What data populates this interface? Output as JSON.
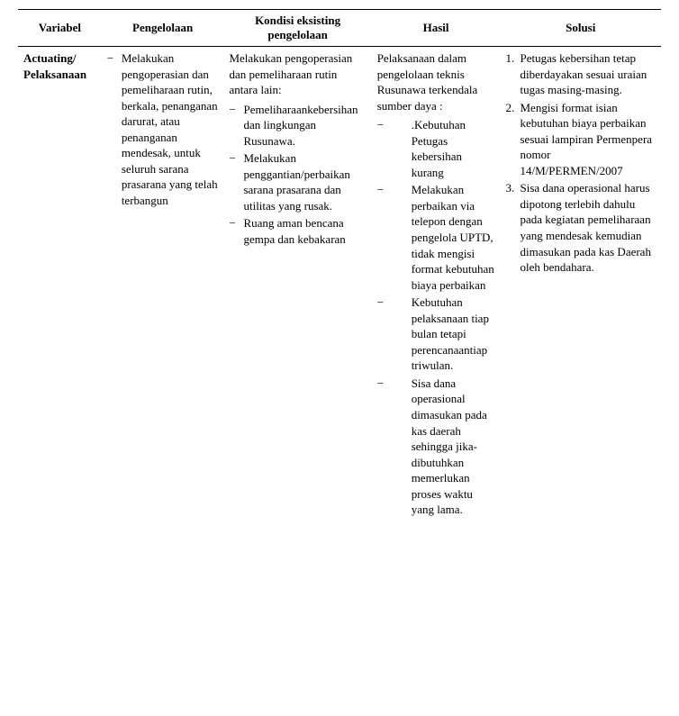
{
  "headers": {
    "col1": "Variabel",
    "col2": "Pengelolaan",
    "col3": "Kondisi eksisting pengelolaan",
    "col4": "Hasil",
    "col5": "Solusi"
  },
  "row": {
    "variabel_line1": "Actuating/",
    "variabel_line2": "Pelaksanaan",
    "pengelolaan_item": "Melakukan pengoperasian dan pemeliharaan rutin, berkala, penanganan darurat, atau penanganan mendesak, untuk seluruh sarana prasarana  yang telah terbangun",
    "kondisi_intro": "Melakukan pengoperasian dan pemeliharaan rutin antara lain:",
    "kondisi_items": {
      "i1": "Pemeliharaankebersihan dan lingkungan Rusunawa.",
      "i2": "Melakukan penggantian/perbaikan sarana prasarana dan utilitas yang rusak.",
      "i3": "Ruang aman bencana gempa dan kebakaran"
    },
    "hasil_intro": "Pelaksanaan dalam pengelolaan teknis Rusunawa terkendala sumber daya :",
    "hasil_items": {
      "i1": ".Kebutuhan Petugas kebersihan kurang",
      "i2": "Melakukan perbaikan via telepon dengan pengelola UPTD, tidak mengisi format kebutuhan biaya perbaikan",
      "i3": "Kebutuhan pelaksanaan tiap bulan tetapi perencanaantiap triwulan.",
      "i4": "Sisa dana operasional dimasukan pada kas daerah sehingga jika-dibutuhkan memerlukan proses waktu yang lama."
    },
    "solusi_items": {
      "i1": "Petugas kebersihan tetap diberdayakan sesuai uraian tugas masing-masing.",
      "i2": "Mengisi format isian kebutuhan biaya perbaikan sesuai lampiran Permenpera nomor 14/M/PERMEN/2007",
      "i3": "Sisa dana operasional harus dipotong terlebih dahulu pada kegiatan pemeliharaan yang mendesak kemudian dimasukan pada kas Daerah oleh bendahara."
    }
  }
}
